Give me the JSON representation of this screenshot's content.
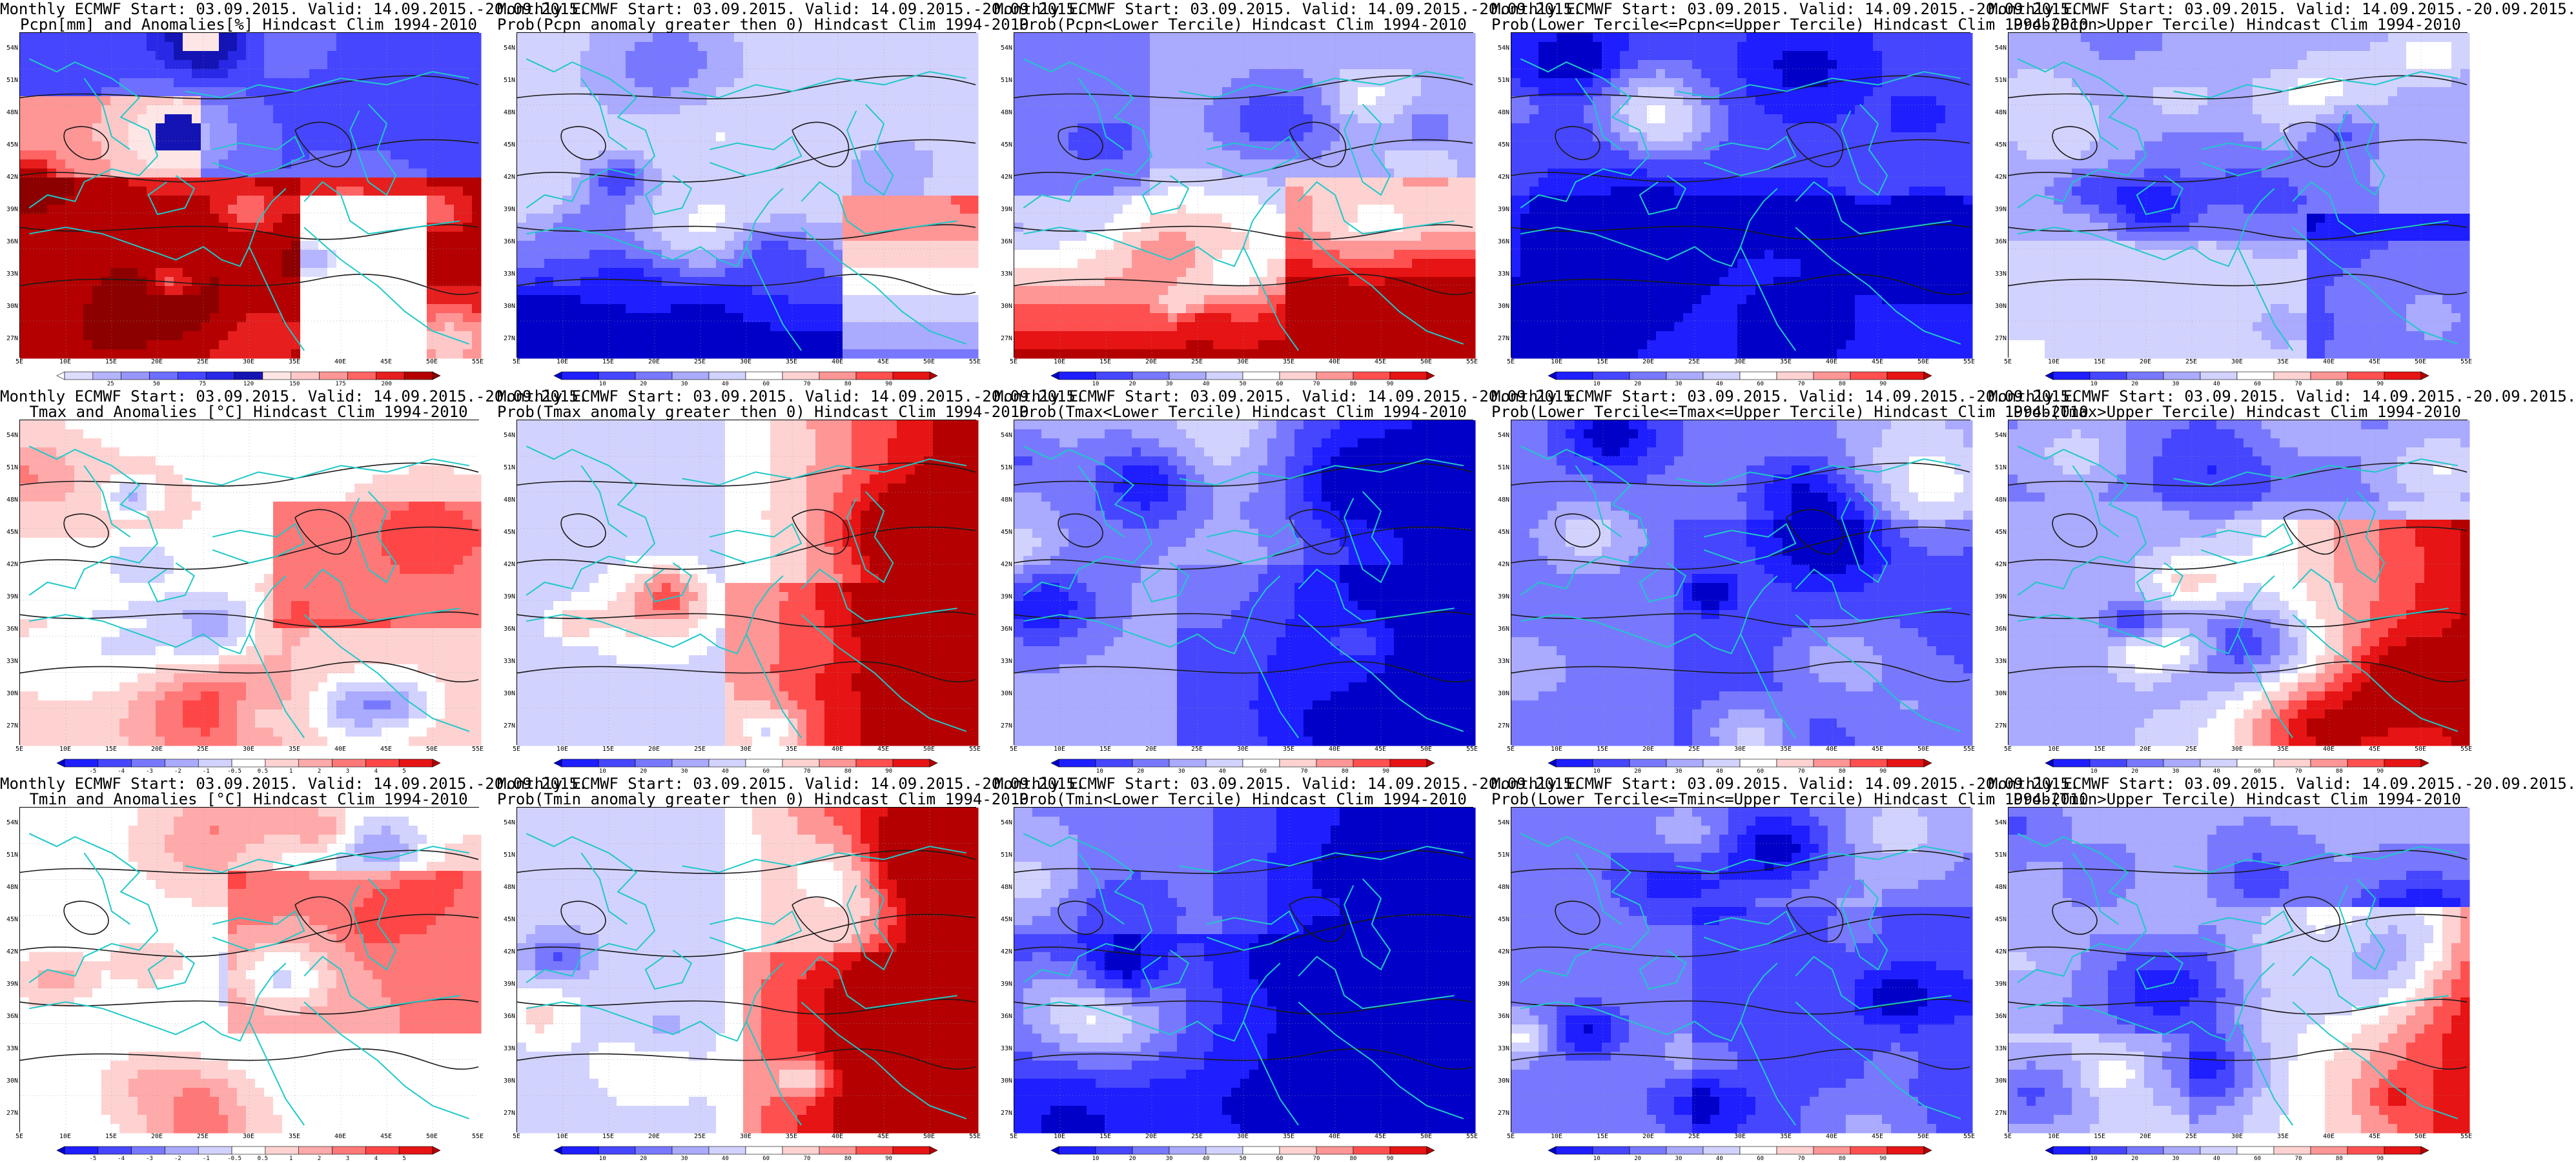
{
  "lat_labels": [
    "54N",
    "51N",
    "48N",
    "45N",
    "42N",
    "39N",
    "36N",
    "33N",
    "30N",
    "27N"
  ],
  "lon_labels": [
    "5E",
    "10E",
    "15E",
    "20E",
    "25E",
    "30E",
    "35E",
    "40E",
    "45E",
    "50E",
    "55E"
  ],
  "panels": [
    {
      "t1": "Monthly ECMWF Start: 03.09.2015. Valid: 14.09.2015.-20.09.2015.",
      "t2": "Pcpn[mm] and Anomalies[%] Hindcast Clim 1994-2010",
      "kind": "pcpn",
      "scale": "precip",
      "seed": 3,
      "colors": [
        "#ffffff",
        "#dcdcff",
        "#b4b4ff",
        "#9696ff",
        "#6e6eff",
        "#4646ff",
        "#2828e6",
        "#1414b4",
        "#ffe6e6",
        "#ffc8c8",
        "#ff9696",
        "#ff6464",
        "#e61e1e",
        "#b40000",
        "#8c0000"
      ],
      "ticks": [
        "25",
        "50",
        "75",
        "120",
        "150",
        "175",
        "200"
      ]
    },
    {
      "t1": "Monthly ECMWF Start: 03.09.2015. Valid: 14.09.2015.-20.09.2015.",
      "t2": "Prob(Pcpn anomaly greater then 0) Hindcast Clim 1994-2010",
      "kind": "prob_low",
      "scale": "prob",
      "seed": 7,
      "colors": [
        "#0000c8",
        "#1e1eff",
        "#4646ff",
        "#7878ff",
        "#aaaaff",
        "#d2d2ff",
        "#ffffff",
        "#ffd2d2",
        "#ff9696",
        "#ff5050",
        "#e61414",
        "#b40000"
      ],
      "ticks": [
        "10",
        "20",
        "30",
        "40",
        "60",
        "70",
        "80",
        "90"
      ]
    },
    {
      "t1": "Monthly ECMWF Start: 03.09.2015. Valid: 14.09.2015.-20.09.2015.",
      "t2": "Prob(Pcpn<Lower Tercile) Hindcast Clim 1994-2010",
      "kind": "prob_south_red",
      "scale": "prob",
      "seed": 11,
      "colors": [
        "#0000c8",
        "#1e1eff",
        "#4646ff",
        "#7878ff",
        "#aaaaff",
        "#d2d2ff",
        "#ffffff",
        "#ffd2d2",
        "#ff9696",
        "#ff5050",
        "#e61414",
        "#b40000"
      ],
      "ticks": [
        "10",
        "20",
        "30",
        "40",
        "50",
        "60",
        "70",
        "80",
        "90"
      ]
    },
    {
      "t1": "Monthly ECMWF Start: 03.09.2015. Valid: 14.09.2015.-20.09.2015.",
      "t2": "Prob(Lower Tercile<=Pcpn<=Upper Tercile) Hindcast Clim 1994-2010",
      "kind": "prob_blue",
      "scale": "prob",
      "seed": 13,
      "colors": [
        "#0000c8",
        "#1e1eff",
        "#4646ff",
        "#7878ff",
        "#aaaaff",
        "#d2d2ff",
        "#ffffff",
        "#ffd2d2",
        "#ff9696",
        "#ff5050",
        "#e61414",
        "#b40000"
      ],
      "ticks": [
        "10",
        "20",
        "30",
        "40",
        "60",
        "70",
        "80",
        "90"
      ]
    },
    {
      "t1": "Monthly ECMWF Start: 03.09.2015. Valid: 14.09.2015.-20.09.2015.",
      "t2": "Prob(Pcpn>Upper Tercile) Hindcast Clim 1994-2010",
      "kind": "prob_mixed",
      "scale": "prob",
      "seed": 17,
      "colors": [
        "#0000c8",
        "#1e1eff",
        "#4646ff",
        "#7878ff",
        "#aaaaff",
        "#d2d2ff",
        "#ffffff",
        "#ffd2d2",
        "#ff9696",
        "#ff5050",
        "#e61414",
        "#b40000"
      ],
      "ticks": [
        "10",
        "20",
        "30",
        "40",
        "60",
        "70",
        "80",
        "90"
      ]
    },
    {
      "t1": "Monthly ECMWF Start: 03.09.2015. Valid: 14.09.2015.-20.09.2015.",
      "t2": "Tmax and Anomalies [°C] Hindcast Clim 1994-2010",
      "kind": "anom_warm_light",
      "scale": "temp",
      "seed": 19,
      "colors": [
        "#0000c8",
        "#1e1eff",
        "#4646ff",
        "#7878ff",
        "#aaaaff",
        "#d2d2ff",
        "#ffffff",
        "#ffd2d2",
        "#ffaaaa",
        "#ff7878",
        "#ff4646",
        "#e61414",
        "#b40000"
      ],
      "ticks": [
        "-5",
        "-4",
        "-3",
        "-2",
        "-1",
        "-0.5",
        "0.5",
        "1",
        "2",
        "3",
        "4",
        "5"
      ]
    },
    {
      "t1": "Monthly ECMWF Start: 03.09.2015. Valid: 14.09.2015.-20.09.2015.",
      "t2": "Prob(Tmax anomaly greater then 0) Hindcast Clim 1994-2010",
      "kind": "prob_east_red",
      "scale": "prob",
      "seed": 23,
      "colors": [
        "#0000c8",
        "#1e1eff",
        "#4646ff",
        "#7878ff",
        "#aaaaff",
        "#d2d2ff",
        "#ffffff",
        "#ffd2d2",
        "#ff9696",
        "#ff5050",
        "#e61414",
        "#b40000"
      ],
      "ticks": [
        "10",
        "20",
        "30",
        "40",
        "60",
        "70",
        "80",
        "90"
      ]
    },
    {
      "t1": "Monthly ECMWF Start: 03.09.2015. Valid: 14.09.2015.-20.09.2015.",
      "t2": "Prob(Tmax<Lower Tercile) Hindcast Clim 1994-2010",
      "kind": "prob_east_blue",
      "scale": "prob",
      "seed": 29,
      "colors": [
        "#0000c8",
        "#1e1eff",
        "#4646ff",
        "#7878ff",
        "#aaaaff",
        "#d2d2ff",
        "#ffffff",
        "#ffd2d2",
        "#ff9696",
        "#ff5050",
        "#e61414",
        "#b40000"
      ],
      "ticks": [
        "10",
        "20",
        "30",
        "40",
        "60",
        "70",
        "80",
        "90"
      ]
    },
    {
      "t1": "Monthly ECMWF Start: 03.09.2015. Valid: 14.09.2015.-20.09.2015.",
      "t2": "Prob(Lower Tercile<=Tmax<=Upper Tercile) Hindcast Clim 1994-2010",
      "kind": "prob_blue_mid",
      "scale": "prob",
      "seed": 31,
      "colors": [
        "#0000c8",
        "#1e1eff",
        "#4646ff",
        "#7878ff",
        "#aaaaff",
        "#d2d2ff",
        "#ffffff",
        "#ffd2d2",
        "#ff9696",
        "#ff5050",
        "#e61414",
        "#b40000"
      ],
      "ticks": [
        "10",
        "20",
        "30",
        "40",
        "60",
        "70",
        "80",
        "90"
      ]
    },
    {
      "t1": "Monthly ECMWF Start: 03.09.2015. Valid: 14.09.2015.-20.09.2015.",
      "t2": "Prob(Tmax>Upper Tercile) Hindcast Clim 1994-2010",
      "kind": "prob_east_red2",
      "scale": "prob",
      "seed": 37,
      "colors": [
        "#0000c8",
        "#1e1eff",
        "#4646ff",
        "#7878ff",
        "#aaaaff",
        "#d2d2ff",
        "#ffffff",
        "#ffd2d2",
        "#ff9696",
        "#ff5050",
        "#e61414",
        "#b40000"
      ],
      "ticks": [
        "10",
        "20",
        "30",
        "40",
        "60",
        "70",
        "80",
        "90"
      ]
    },
    {
      "t1": "Monthly ECMWF Start: 03.09.2015. Valid: 14.09.2015.-20.09.2015.",
      "t2": "Tmin and Anomalies [°C] Hindcast Clim 1994-2010",
      "kind": "anom_warm_light2",
      "scale": "temp",
      "seed": 41,
      "colors": [
        "#0000c8",
        "#1e1eff",
        "#4646ff",
        "#7878ff",
        "#aaaaff",
        "#d2d2ff",
        "#ffffff",
        "#ffd2d2",
        "#ffaaaa",
        "#ff7878",
        "#ff4646",
        "#e61414",
        "#b40000"
      ],
      "ticks": [
        "-5",
        "-4",
        "-3",
        "-2",
        "-1",
        "-0.5",
        "0.5",
        "1",
        "2",
        "3",
        "4",
        "5"
      ]
    },
    {
      "t1": "Monthly ECMWF Start: 03.09.2015. Valid: 14.09.2015.-20.09.2015.",
      "t2": "Prob(Tmin anomaly greater then 0) Hindcast Clim 1994-2010",
      "kind": "prob_east_red3",
      "scale": "prob",
      "seed": 43,
      "colors": [
        "#0000c8",
        "#1e1eff",
        "#4646ff",
        "#7878ff",
        "#aaaaff",
        "#d2d2ff",
        "#ffffff",
        "#ffd2d2",
        "#ff9696",
        "#ff5050",
        "#e61414",
        "#b40000"
      ],
      "ticks": [
        "10",
        "20",
        "30",
        "40",
        "60",
        "70",
        "80",
        "90"
      ]
    },
    {
      "t1": "Monthly ECMWF Start: 03.09.2015. Valid: 14.09.2015.-20.09.2015.",
      "t2": "Prob(Tmin<Lower Tercile) Hindcast Clim 1994-2010",
      "kind": "prob_east_blue2",
      "scale": "prob",
      "seed": 47,
      "colors": [
        "#0000c8",
        "#1e1eff",
        "#4646ff",
        "#7878ff",
        "#aaaaff",
        "#d2d2ff",
        "#ffffff",
        "#ffd2d2",
        "#ff9696",
        "#ff5050",
        "#e61414",
        "#b40000"
      ],
      "ticks": [
        "10",
        "20",
        "30",
        "40",
        "50",
        "60",
        "70",
        "80",
        "90"
      ]
    },
    {
      "t1": "Monthly ECMWF Start: 03.09.2015. Valid: 14.09.2015.-20.09.2015.",
      "t2": "Prob(Lower Tercile<=Tmin<=Upper Tercile) Hindcast Clim 1994-2010",
      "kind": "prob_blue_mid2",
      "scale": "prob",
      "seed": 53,
      "colors": [
        "#0000c8",
        "#1e1eff",
        "#4646ff",
        "#7878ff",
        "#aaaaff",
        "#d2d2ff",
        "#ffffff",
        "#ffd2d2",
        "#ff9696",
        "#ff5050",
        "#e61414",
        "#b40000"
      ],
      "ticks": [
        "10",
        "20",
        "30",
        "40",
        "60",
        "70",
        "80",
        "90"
      ]
    },
    {
      "t1": "Monthly ECMWF Start: 03.09.2015. Valid: 14.09.2015.-20.09.2015.",
      "t2": "Prob(Tmin>Upper Tercile) Hindcast Clim 1994-2010",
      "kind": "prob_east_red4",
      "scale": "prob",
      "seed": 59,
      "colors": [
        "#0000c8",
        "#1e1eff",
        "#4646ff",
        "#7878ff",
        "#aaaaff",
        "#d2d2ff",
        "#ffffff",
        "#ffd2d2",
        "#ff9696",
        "#ff5050",
        "#e61414",
        "#b40000"
      ],
      "ticks": [
        "10",
        "20",
        "30",
        "40",
        "60",
        "70",
        "80",
        "90"
      ]
    }
  ]
}
